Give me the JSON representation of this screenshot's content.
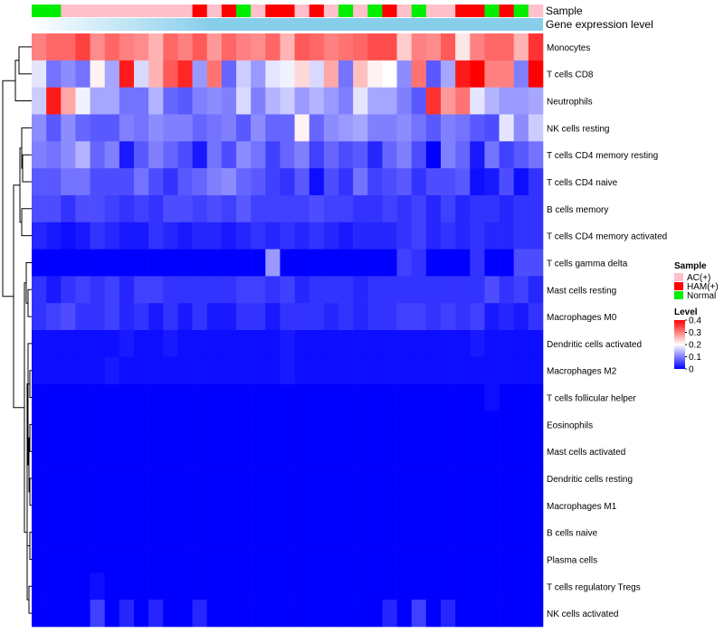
{
  "chart_data": {
    "type": "heatmap",
    "title": "",
    "annotation_tracks": [
      "Sample",
      "Gene expression level"
    ],
    "rows": [
      "Monocytes",
      "T cells CD8",
      "Neutrophils",
      "NK cells resting",
      "T cells CD4 memory resting",
      "T cells CD4 naive",
      "B cells memory",
      "T cells CD4 memory activated",
      "T cells gamma delta",
      "Mast cells resting",
      "Macrophages M0",
      "Dendritic cells activated",
      "Macrophages M2",
      "T cells follicular helper",
      "Eosinophils",
      "Mast cells activated",
      "Dendritic cells resting",
      "Macrophages M1",
      "B cells naive",
      "Plasma cells",
      "T cells regulatory  Tregs",
      "NK cells activated"
    ],
    "sample_groups": [
      "Normal",
      "Normal",
      "AC(+)",
      "AC(+)",
      "AC(+)",
      "AC(+)",
      "AC(+)",
      "AC(+)",
      "AC(+)",
      "AC(+)",
      "AC(+)",
      "HAM(+)",
      "AC(+)",
      "HAM(+)",
      "Normal",
      "AC(+)",
      "HAM(+)",
      "HAM(+)",
      "AC(+)",
      "HAM(+)",
      "AC(+)",
      "Normal",
      "AC(+)",
      "Normal",
      "HAM(+)",
      "AC(+)",
      "Normal",
      "AC(+)",
      "AC(+)",
      "HAM(+)",
      "HAM(+)",
      "Normal",
      "HAM(+)",
      "Normal",
      "AC(+)"
    ],
    "values": [
      [
        0.3,
        0.32,
        0.32,
        0.35,
        0.29,
        0.32,
        0.3,
        0.29,
        0.26,
        0.32,
        0.3,
        0.33,
        0.28,
        0.32,
        0.3,
        0.29,
        0.32,
        0.26,
        0.33,
        0.32,
        0.3,
        0.31,
        0.32,
        0.34,
        0.34,
        0.24,
        0.3,
        0.29,
        0.33,
        0.22,
        0.3,
        0.32,
        0.32,
        0.26,
        0.36
      ],
      [
        0.18,
        0.09,
        0.11,
        0.09,
        0.21,
        0.13,
        0.38,
        0.17,
        0.26,
        0.33,
        0.37,
        0.12,
        0.31,
        0.08,
        0.16,
        0.12,
        0.18,
        0.19,
        0.23,
        0.17,
        0.27,
        0.09,
        0.25,
        0.21,
        0.2,
        0.11,
        0.31,
        0.07,
        0.13,
        0.38,
        0.4,
        0.3,
        0.3,
        0.1,
        0.4
      ],
      [
        0.16,
        0.38,
        0.27,
        0.19,
        0.13,
        0.13,
        0.09,
        0.09,
        0.14,
        0.08,
        0.07,
        0.1,
        0.11,
        0.1,
        0.17,
        0.1,
        0.14,
        0.16,
        0.12,
        0.14,
        0.12,
        0.1,
        0.18,
        0.13,
        0.13,
        0.1,
        0.07,
        0.36,
        0.28,
        0.31,
        0.18,
        0.14,
        0.12,
        0.12,
        0.13
      ],
      [
        0.11,
        0.07,
        0.11,
        0.08,
        0.07,
        0.07,
        0.1,
        0.09,
        0.11,
        0.1,
        0.1,
        0.08,
        0.09,
        0.1,
        0.07,
        0.11,
        0.08,
        0.08,
        0.21,
        0.08,
        0.11,
        0.12,
        0.13,
        0.1,
        0.1,
        0.11,
        0.09,
        0.07,
        0.1,
        0.09,
        0.07,
        0.06,
        0.18,
        0.11,
        0.16
      ],
      [
        0.1,
        0.09,
        0.11,
        0.14,
        0.08,
        0.1,
        0.02,
        0.07,
        0.1,
        0.08,
        0.06,
        0.02,
        0.09,
        0.06,
        0.11,
        0.09,
        0.05,
        0.08,
        0.1,
        0.05,
        0.08,
        0.06,
        0.07,
        0.03,
        0.08,
        0.1,
        0.06,
        0.0,
        0.1,
        0.08,
        0.02,
        0.09,
        0.05,
        0.07,
        0.09
      ],
      [
        0.07,
        0.07,
        0.09,
        0.09,
        0.06,
        0.06,
        0.06,
        0.09,
        0.06,
        0.04,
        0.07,
        0.08,
        0.1,
        0.11,
        0.08,
        0.07,
        0.05,
        0.04,
        0.07,
        0.01,
        0.06,
        0.04,
        0.09,
        0.05,
        0.06,
        0.07,
        0.04,
        0.06,
        0.06,
        0.07,
        0.01,
        0.02,
        0.06,
        0.01,
        0.04
      ],
      [
        0.06,
        0.06,
        0.04,
        0.06,
        0.06,
        0.05,
        0.04,
        0.05,
        0.04,
        0.06,
        0.06,
        0.05,
        0.06,
        0.05,
        0.07,
        0.05,
        0.05,
        0.05,
        0.05,
        0.06,
        0.05,
        0.05,
        0.04,
        0.04,
        0.05,
        0.04,
        0.05,
        0.03,
        0.05,
        0.03,
        0.04,
        0.04,
        0.03,
        0.04,
        0.04
      ],
      [
        0.03,
        0.02,
        0.01,
        0.02,
        0.04,
        0.03,
        0.02,
        0.02,
        0.04,
        0.03,
        0.02,
        0.03,
        0.03,
        0.02,
        0.03,
        0.04,
        0.03,
        0.04,
        0.03,
        0.04,
        0.03,
        0.02,
        0.03,
        0.03,
        0.03,
        0.04,
        0.05,
        0.03,
        0.04,
        0.03,
        0.04,
        0.03,
        0.03,
        0.04,
        0.04
      ],
      [
        0.0,
        0.0,
        0.0,
        0.0,
        0.0,
        0.0,
        0.0,
        0.0,
        0.0,
        0.0,
        0.0,
        0.0,
        0.0,
        0.0,
        0.0,
        0.0,
        0.12,
        0.0,
        0.0,
        0.0,
        0.0,
        0.0,
        0.0,
        0.0,
        0.0,
        0.05,
        0.04,
        0.0,
        0.0,
        0.0,
        0.04,
        0.0,
        0.0,
        0.06,
        0.06
      ],
      [
        0.04,
        0.02,
        0.04,
        0.05,
        0.04,
        0.05,
        0.03,
        0.05,
        0.05,
        0.04,
        0.04,
        0.04,
        0.04,
        0.04,
        0.05,
        0.05,
        0.04,
        0.05,
        0.03,
        0.04,
        0.04,
        0.04,
        0.03,
        0.04,
        0.04,
        0.04,
        0.04,
        0.04,
        0.04,
        0.04,
        0.04,
        0.06,
        0.04,
        0.05,
        0.03
      ],
      [
        0.04,
        0.05,
        0.06,
        0.04,
        0.04,
        0.05,
        0.03,
        0.04,
        0.02,
        0.04,
        0.02,
        0.04,
        0.02,
        0.02,
        0.04,
        0.04,
        0.02,
        0.04,
        0.04,
        0.04,
        0.03,
        0.04,
        0.03,
        0.04,
        0.04,
        0.05,
        0.05,
        0.04,
        0.05,
        0.04,
        0.05,
        0.02,
        0.03,
        0.02,
        0.04
      ],
      [
        0.01,
        0.01,
        0.01,
        0.01,
        0.01,
        0.01,
        0.02,
        0.01,
        0.01,
        0.02,
        0.01,
        0.01,
        0.01,
        0.01,
        0.01,
        0.01,
        0.01,
        0.02,
        0.01,
        0.01,
        0.01,
        0.01,
        0.01,
        0.01,
        0.01,
        0.01,
        0.01,
        0.01,
        0.01,
        0.01,
        0.02,
        0.01,
        0.01,
        0.01,
        0.01
      ],
      [
        0.01,
        0.01,
        0.01,
        0.01,
        0.01,
        0.02,
        0.01,
        0.01,
        0.01,
        0.01,
        0.01,
        0.01,
        0.01,
        0.01,
        0.01,
        0.01,
        0.01,
        0.02,
        0.01,
        0.01,
        0.01,
        0.01,
        0.01,
        0.01,
        0.01,
        0.01,
        0.01,
        0.01,
        0.01,
        0.01,
        0.01,
        0.01,
        0.01,
        0.01,
        0.01
      ],
      [
        0.0,
        0.0,
        0.0,
        0.0,
        0.0,
        0.0,
        0.0,
        0.0,
        0.0,
        0.0,
        0.0,
        0.0,
        0.0,
        0.0,
        0.0,
        0.0,
        0.0,
        0.0,
        0.0,
        0.0,
        0.0,
        0.0,
        0.0,
        0.0,
        0.0,
        0.0,
        0.0,
        0.0,
        0.0,
        0.0,
        0.0,
        0.01,
        0.0,
        0.0,
        0.0
      ],
      [
        0.0,
        0.0,
        0.0,
        0.0,
        0.0,
        0.0,
        0.0,
        0.0,
        0.0,
        0.0,
        0.0,
        0.0,
        0.0,
        0.0,
        0.0,
        0.0,
        0.0,
        0.0,
        0.0,
        0.0,
        0.0,
        0.0,
        0.0,
        0.0,
        0.0,
        0.0,
        0.0,
        0.0,
        0.0,
        0.0,
        0.0,
        0.0,
        0.0,
        0.0,
        0.0
      ],
      [
        0.0,
        0.0,
        0.0,
        0.0,
        0.0,
        0.0,
        0.0,
        0.0,
        0.0,
        0.0,
        0.0,
        0.0,
        0.0,
        0.0,
        0.0,
        0.0,
        0.0,
        0.0,
        0.0,
        0.0,
        0.0,
        0.0,
        0.0,
        0.0,
        0.0,
        0.0,
        0.0,
        0.0,
        0.0,
        0.0,
        0.0,
        0.0,
        0.0,
        0.0,
        0.0
      ],
      [
        0.0,
        0.0,
        0.0,
        0.0,
        0.0,
        0.0,
        0.0,
        0.0,
        0.0,
        0.0,
        0.0,
        0.0,
        0.0,
        0.0,
        0.0,
        0.0,
        0.0,
        0.0,
        0.0,
        0.0,
        0.0,
        0.0,
        0.0,
        0.0,
        0.0,
        0.0,
        0.0,
        0.0,
        0.0,
        0.0,
        0.0,
        0.0,
        0.0,
        0.0,
        0.0
      ],
      [
        0.0,
        0.0,
        0.0,
        0.0,
        0.0,
        0.0,
        0.0,
        0.0,
        0.0,
        0.0,
        0.0,
        0.0,
        0.0,
        0.0,
        0.0,
        0.0,
        0.0,
        0.0,
        0.0,
        0.0,
        0.0,
        0.0,
        0.0,
        0.0,
        0.0,
        0.0,
        0.0,
        0.0,
        0.0,
        0.0,
        0.0,
        0.0,
        0.0,
        0.0,
        0.0
      ],
      [
        0.0,
        0.0,
        0.0,
        0.0,
        0.0,
        0.0,
        0.0,
        0.0,
        0.0,
        0.0,
        0.0,
        0.0,
        0.0,
        0.0,
        0.0,
        0.0,
        0.0,
        0.0,
        0.0,
        0.0,
        0.0,
        0.0,
        0.0,
        0.0,
        0.0,
        0.0,
        0.0,
        0.0,
        0.0,
        0.0,
        0.0,
        0.0,
        0.0,
        0.0,
        0.0
      ],
      [
        0.0,
        0.0,
        0.0,
        0.0,
        0.0,
        0.0,
        0.0,
        0.0,
        0.0,
        0.0,
        0.0,
        0.0,
        0.0,
        0.0,
        0.0,
        0.0,
        0.0,
        0.0,
        0.0,
        0.0,
        0.0,
        0.0,
        0.0,
        0.0,
        0.0,
        0.0,
        0.0,
        0.0,
        0.0,
        0.0,
        0.0,
        0.0,
        0.0,
        0.0,
        0.0
      ],
      [
        0.0,
        0.0,
        0.0,
        0.0,
        0.01,
        0.0,
        0.0,
        0.0,
        0.0,
        0.0,
        0.0,
        0.0,
        0.0,
        0.0,
        0.0,
        0.0,
        0.0,
        0.0,
        0.0,
        0.0,
        0.0,
        0.0,
        0.0,
        0.0,
        0.0,
        0.0,
        0.0,
        0.0,
        0.0,
        0.0,
        0.0,
        0.0,
        0.0,
        0.0,
        0.0
      ],
      [
        0.0,
        0.0,
        0.0,
        0.0,
        0.05,
        0.0,
        0.03,
        0.0,
        0.03,
        0.0,
        0.0,
        0.03,
        0.0,
        0.0,
        0.0,
        0.0,
        0.0,
        0.0,
        0.0,
        0.0,
        0.0,
        0.0,
        0.0,
        0.0,
        0.03,
        0.0,
        0.05,
        0.0,
        0.03,
        0.0,
        0.0,
        0.0,
        0.0,
        0.0,
        0.0
      ]
    ],
    "legend": {
      "sample": {
        "title": "Sample",
        "entries": [
          {
            "label": "AC(+)",
            "color": "#ffc0cb"
          },
          {
            "label": "HAM(+)",
            "color": "#ff0000"
          },
          {
            "label": "Normal",
            "color": "#00ee00"
          }
        ]
      },
      "level": {
        "title": "Level",
        "ticks": [
          "0.4",
          "0.3",
          "0.2",
          "0.1",
          "0"
        ],
        "range": [
          0,
          0.4
        ]
      }
    },
    "colors": {
      "low": "#0000ff",
      "mid": "#ffffff",
      "high": "#ff0000",
      "expression_track": "#87ceeb",
      "AC(+)": "#ffc0cb",
      "HAM(+)": "#ff0000",
      "Normal": "#00ee00"
    },
    "color_midpoint": 0.2
  }
}
